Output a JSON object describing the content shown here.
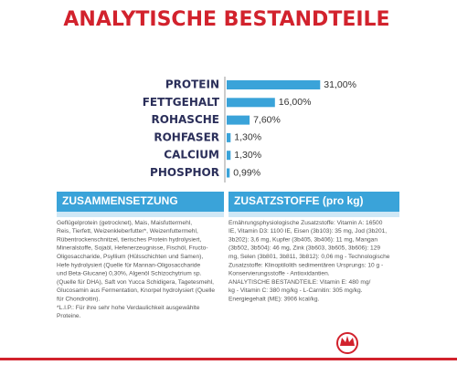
{
  "chart_data": {
    "type": "bar",
    "orientation": "horizontal",
    "title": "ANALYTISCHE BESTANDTEILE",
    "categories": [
      "PROTEIN",
      "FETTGEHALT",
      "ROHASCHE",
      "ROHFASER",
      "CALCIUM",
      "PHOSPHOR"
    ],
    "values": [
      31,
      16,
      7.6,
      1.3,
      1.3,
      0.99
    ],
    "value_labels": [
      "31,00%",
      "16,00%",
      "7,60%",
      "1,30%",
      "1,30%",
      "0,99%"
    ],
    "color": "#3aa3d9"
  },
  "sections": [
    {
      "title": "ZUSAMMENSETZUNG",
      "lines": [
        "Geflügelprotein (getrocknet), Mais, Maisfuttermehl,",
        "Reis, Tierfett, Weizenkleberfutter*, Weizenfuttermehl,",
        "Rübentrockenschnitzel, tierisches Protein hydrolysiert,",
        "Mineralstoffe, Sojaöl, Hefenerzeugnisse, Fischöl, Fructo-",
        "Oligosaccharide, Psyllium (Hülsschichten und Samen),",
        "Hefe hydrolysiert (Quelle für Mannan-Oligosaccharide",
        "und Beta-Glucane) 0,30%, Algenöl Schizochytrium sp.",
        "(Quelle für DHA), Saft von Yucca Schidigera, Tagetesmehl,",
        "Glucosamin aus Fermentation, Knorpel hydrolysiert (Quelle",
        "für Chondroitin).",
        "*L.I.P.: Für ihre sehr hohe Verdaulichkeit ausgewählte",
        "Proteine."
      ]
    },
    {
      "title": "ZUSATZSTOFFE (pro kg)",
      "lines": [
        "Ernährungsphysiologische Zusatzstoffe: Vitamin A: 16500",
        "IE, Vitamin D3: 1100 IE, Eisen (3b103): 35 mg, Jod (3b201,",
        "3b202): 3,6 mg, Kupfer (3b405, 3b406): 11 mg, Mangan",
        "(3b502, 3b504): 46 mg, Zink (3b603, 3b605, 3b606): 129",
        "mg, Selen (3b801, 3b811, 3b812): 0,06 mg - Technologische",
        "Zusatzstoffe: Klinoptilolith sedimentären Ursprungs: 10 g -",
        "Konservierungsstoffe - Antioxidantien.",
        "ANALYTISCHE BESTANDTEILE: Vitamin E: 480 mg/",
        "kg - Vitamin C: 380 mg/kg - L-Carnitin: 305 mg/kg.",
        "Energiegehalt (ME): 3906 kcal/kg."
      ]
    }
  ]
}
